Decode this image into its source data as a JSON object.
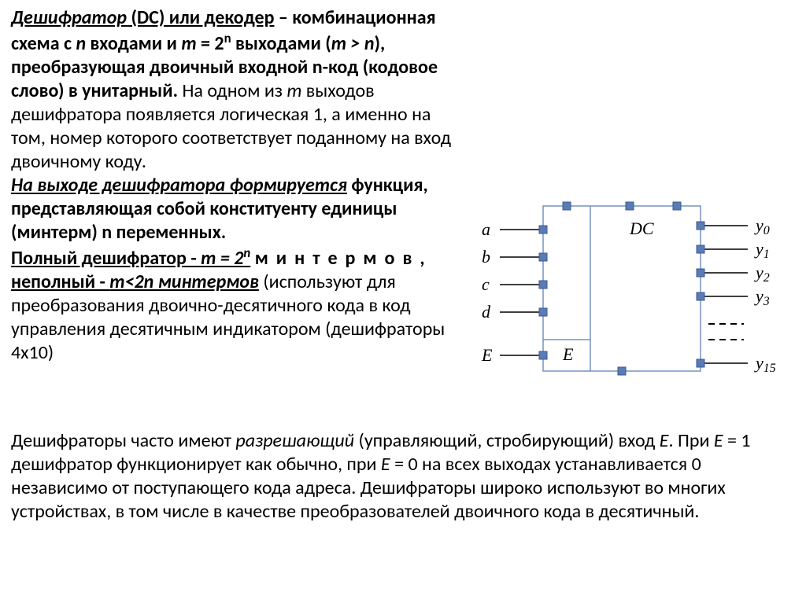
{
  "paragraph1": {
    "s1_prefix_html": "<span class='underline bold italic'>Дешифратор</span><span class='underline bold'> (DC) или декодер</span><span class='bold'> – комбинационная схема с <span class='italic'>n</span> входами и <span class='italic'>m</span> = 2<sup>n</sup> выходами (<span class='italic'>m &gt; n</span>), преобразующая двоичный входной n-код (кодовое слово) в унитарный.</span>",
    "s1_tail": " На одном из ",
    "s1_m": "m",
    "s1_tail2": " выходов дешифратора появляется логическая 1, а именно на том, номер которого соответствует поданному на вход двоичному коду."
  },
  "paragraph2": {
    "line1": "На выходе  дешифратора формируется",
    "line2": "функция, представляющая собой конституенту единицы (минтерм) n переменных.",
    "full_dec_prefix": "Полный дешифратор - ",
    "full_dec_formula": "m = 2",
    "minterms_spaced": "минтермов",
    "incomplete": "неполный - ",
    "incomplete_formula": "m<2n минтермов",
    "tail": " (используют для преобразования двоично-десятичного кода в код управления десятичным индикатором (дешифраторы 4x10)"
  },
  "paragraph3": {
    "pre": "Дешифраторы часто имеют ",
    "razr": "разрешающий",
    "mid1": " (управляющий, стробирующий) вход ",
    "E": "E",
    "mid2": ". При ",
    "mid3": " = 1 дешифратор функционирует как обычно, при ",
    "mid4": " = 0 на всех выходах устанавливается 0 независимо от поступающего кода адреса. Дешифраторы широко используют во многих устройствах, в том числе в качестве преобразователей двоичного кода в десятичный."
  },
  "diagram": {
    "inputs": [
      "a",
      "b",
      "c",
      "d",
      "E"
    ],
    "dc_label": "DC",
    "E_inside": "E",
    "outputs": [
      "y0",
      "y1",
      "y2",
      "y3",
      "y15"
    ],
    "box_stroke": "#7692c1",
    "pin_fill": "#5b7bb4",
    "pin_stroke": "#3a5a96",
    "line_color": "#000000"
  },
  "style": {
    "body_fontsize": 24,
    "svg_fontsize": 22
  }
}
